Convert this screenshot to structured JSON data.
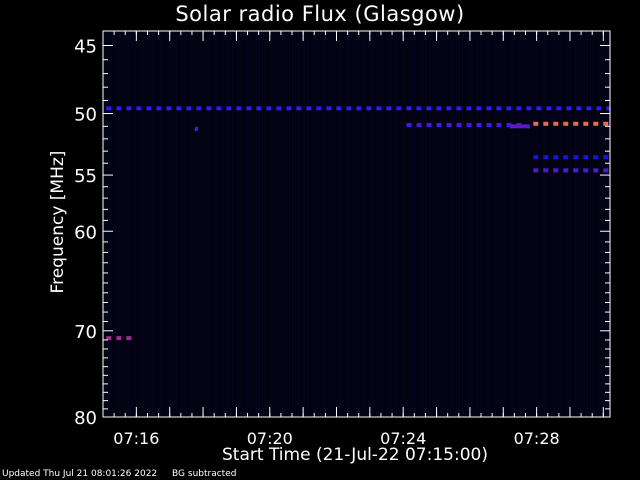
{
  "chart_data": {
    "type": "heatmap",
    "title": "Solar radio Flux (Glasgow)",
    "xlabel": "Start Time (21-Jul-22 07:15:00)",
    "ylabel": "Frequency [MHz]",
    "x_ticks": [
      "07:16",
      "07:20",
      "07:24",
      "07:28"
    ],
    "x_tick_minutes": [
      1,
      5,
      9,
      13
    ],
    "xlim_minutes": [
      0,
      15.2
    ],
    "y_ticks": [
      45,
      50,
      55,
      60,
      70,
      80
    ],
    "ylim": [
      44,
      80
    ],
    "y_scale": "log",
    "colormap": [
      "#000000",
      "#0a0a3a",
      "#1a1aff",
      "#8a1aa0",
      "#ff8040"
    ],
    "features": [
      {
        "name": "continuous-line-49.6MHz",
        "freq": 49.6,
        "t_start": 0.1,
        "t_end": 15.2,
        "intensity": 0.55,
        "dashed": true
      },
      {
        "name": "line-50.9MHz",
        "freq": 50.9,
        "t_start": 9.1,
        "t_end": 12.6,
        "intensity": 0.6,
        "dashed": true
      },
      {
        "name": "line-51.0MHz-strong",
        "freq": 51.0,
        "t_start": 12.2,
        "t_end": 12.8,
        "intensity": 0.65,
        "dashed": false
      },
      {
        "name": "orange-line-50.8MHz",
        "freq": 50.8,
        "t_start": 12.9,
        "t_end": 15.2,
        "intensity": 0.95,
        "dashed": true
      },
      {
        "name": "line-53.5MHz",
        "freq": 53.5,
        "t_start": 12.9,
        "t_end": 15.2,
        "intensity": 0.45,
        "dashed": true
      },
      {
        "name": "line-54.6MHz",
        "freq": 54.6,
        "t_start": 12.9,
        "t_end": 15.2,
        "intensity": 0.62,
        "dashed": true
      },
      {
        "name": "purple-burst-70.8MHz",
        "freq": 70.8,
        "t_start": 0.1,
        "t_end": 0.9,
        "intensity": 0.8,
        "dashed": true
      },
      {
        "name": "spot-51.2MHz",
        "freq": 51.2,
        "t_start": 2.75,
        "t_end": 2.85,
        "intensity": 0.6,
        "dashed": false
      }
    ]
  },
  "footer": {
    "updated": "Updated Thu Jul 21 08:01:26 2022",
    "mode": "BG subtracted"
  }
}
